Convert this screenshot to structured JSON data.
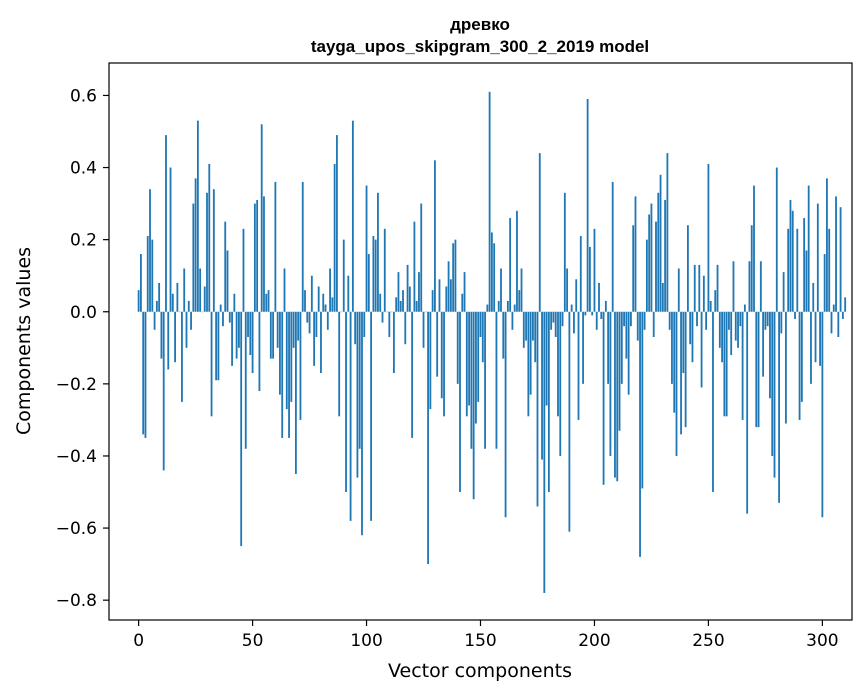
{
  "chart_data": {
    "type": "bar",
    "title": "древко",
    "subtitle": "tayga_upos_skipgram_300_2_2019 model",
    "xlabel": "Vector components",
    "ylabel": "Components values",
    "xlim": [
      -13,
      313
    ],
    "ylim": [
      -0.855,
      0.69
    ],
    "xticks": [
      0,
      50,
      100,
      150,
      200,
      250,
      300
    ],
    "xtick_labels": [
      "0",
      "50",
      "100",
      "150",
      "200",
      "250",
      "300"
    ],
    "yticks": [
      -0.8,
      -0.6,
      -0.4,
      -0.2,
      0.0,
      0.2,
      0.4,
      0.6
    ],
    "ytick_labels": [
      "−0.8",
      "−0.6",
      "−0.4",
      "−0.2",
      "0.0",
      "0.2",
      "0.4",
      "0.6"
    ],
    "grid": false,
    "color": "#1f77b4",
    "x_start": 0,
    "values": [
      0.06,
      0.16,
      -0.34,
      -0.35,
      0.21,
      0.34,
      0.2,
      -0.05,
      0.03,
      0.08,
      -0.13,
      -0.44,
      0.49,
      -0.16,
      0.4,
      0.05,
      -0.14,
      0.08,
      0.0,
      -0.25,
      0.12,
      -0.1,
      0.03,
      -0.05,
      0.3,
      0.37,
      0.53,
      0.12,
      0.0,
      0.07,
      0.33,
      0.41,
      -0.29,
      0.34,
      -0.19,
      -0.19,
      0.02,
      -0.04,
      0.25,
      0.17,
      -0.03,
      -0.15,
      0.05,
      -0.13,
      -0.1,
      -0.65,
      0.23,
      -0.38,
      -0.07,
      -0.12,
      -0.17,
      0.3,
      0.31,
      -0.22,
      0.52,
      0.32,
      0.05,
      0.06,
      -0.13,
      -0.13,
      0.36,
      -0.1,
      -0.23,
      -0.35,
      0.12,
      -0.27,
      -0.35,
      -0.25,
      -0.1,
      -0.45,
      -0.08,
      -0.3,
      0.36,
      0.06,
      -0.03,
      -0.06,
      0.1,
      -0.15,
      -0.07,
      0.07,
      -0.17,
      0.05,
      0.02,
      -0.05,
      0.12,
      0.04,
      0.41,
      0.49,
      -0.29,
      0.0,
      0.2,
      -0.5,
      0.1,
      -0.58,
      0.53,
      -0.09,
      -0.46,
      -0.38,
      -0.62,
      -0.07,
      0.35,
      0.16,
      -0.58,
      0.21,
      0.2,
      0.33,
      0.05,
      -0.03,
      0.23,
      0.0,
      -0.07,
      0.0,
      -0.17,
      0.04,
      0.11,
      0.03,
      0.06,
      -0.09,
      0.13,
      0.07,
      -0.35,
      0.25,
      0.03,
      0.11,
      0.3,
      -0.1,
      0.0,
      -0.7,
      -0.27,
      0.06,
      0.42,
      -0.18,
      0.09,
      -0.24,
      -0.29,
      0.07,
      0.14,
      0.09,
      0.19,
      0.2,
      -0.2,
      -0.5,
      0.05,
      0.11,
      -0.29,
      -0.26,
      -0.38,
      -0.52,
      -0.31,
      -0.25,
      -0.07,
      -0.14,
      -0.38,
      0.02,
      0.61,
      0.22,
      0.19,
      -0.38,
      0.03,
      0.12,
      -0.13,
      -0.57,
      0.03,
      0.26,
      -0.05,
      0.02,
      0.28,
      0.06,
      0.12,
      -0.1,
      -0.08,
      -0.29,
      -0.23,
      -0.08,
      -0.14,
      -0.54,
      0.44,
      -0.41,
      -0.78,
      -0.26,
      -0.5,
      -0.05,
      -0.03,
      -0.07,
      -0.29,
      -0.4,
      -0.04,
      0.33,
      0.12,
      -0.61,
      0.02,
      -0.06,
      0.09,
      -0.3,
      0.21,
      -0.2,
      -0.01,
      0.59,
      0.18,
      -0.01,
      0.23,
      -0.05,
      0.08,
      -0.02,
      -0.48,
      0.03,
      -0.2,
      -0.4,
      0.36,
      -0.46,
      -0.47,
      -0.33,
      -0.2,
      -0.04,
      -0.13,
      -0.23,
      -0.04,
      0.24,
      0.32,
      -0.08,
      -0.68,
      -0.49,
      -0.05,
      0.2,
      0.27,
      0.3,
      -0.07,
      0.25,
      0.33,
      0.38,
      0.08,
      0.31,
      0.44,
      -0.05,
      -0.2,
      -0.28,
      -0.4,
      0.12,
      -0.34,
      -0.17,
      -0.32,
      0.24,
      -0.09,
      -0.14,
      0.13,
      -0.04,
      0.13,
      -0.21,
      0.1,
      -0.05,
      0.41,
      0.03,
      -0.5,
      0.06,
      0.13,
      -0.1,
      -0.14,
      -0.29,
      -0.29,
      -0.05,
      -0.12,
      0.14,
      -0.08,
      -0.1,
      -0.04,
      -0.3,
      0.02,
      -0.56,
      0.14,
      0.24,
      0.35,
      -0.32,
      -0.32,
      0.14,
      -0.18,
      -0.05,
      -0.04,
      -0.24,
      -0.4,
      -0.46,
      0.4,
      -0.53,
      -0.06,
      0.11,
      -0.31,
      0.23,
      0.31,
      0.28,
      -0.02,
      0.23,
      -0.3,
      -0.25,
      0.26,
      0.17,
      0.35,
      -0.2,
      0.08,
      -0.14,
      0.3,
      -0.15,
      -0.57,
      0.16,
      0.37,
      0.23,
      -0.06,
      0.02,
      0.32,
      -0.07,
      0.29,
      -0.02,
      0.04
    ]
  }
}
